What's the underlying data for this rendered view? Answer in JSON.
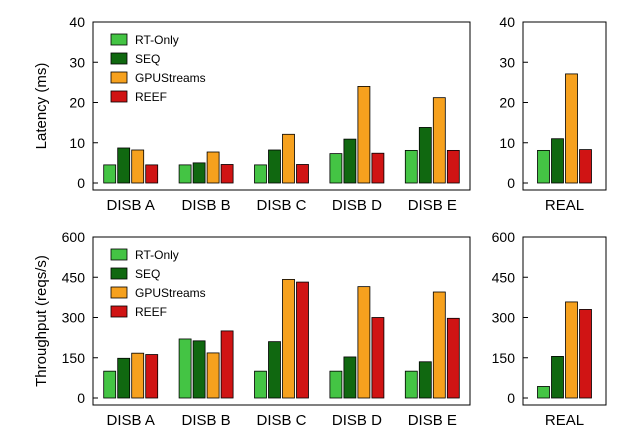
{
  "colors": {
    "RT-Only": "#44c444",
    "SEQ": "#106810",
    "GPUStreams": "#f6a11e",
    "REEF": "#d01414"
  },
  "chart_data": [
    {
      "type": "bar",
      "ylabel": "Latency (ms)",
      "ylim": [
        0,
        40
      ],
      "yticks": [
        0,
        10,
        20,
        30,
        40
      ],
      "legend_position": "top-left",
      "categories": [
        "DISB A",
        "DISB B",
        "DISB C",
        "DISB D",
        "DISB E"
      ],
      "series": [
        {
          "name": "RT-Only",
          "values": [
            4.5,
            4.5,
            4.5,
            7.3,
            8.1
          ]
        },
        {
          "name": "SEQ",
          "values": [
            8.7,
            5.0,
            8.2,
            10.9,
            13.8
          ]
        },
        {
          "name": "GPUStreams",
          "values": [
            8.2,
            7.7,
            12.1,
            24.0,
            21.2
          ]
        },
        {
          "name": "REEF",
          "values": [
            4.5,
            4.6,
            4.6,
            7.4,
            8.1
          ]
        }
      ]
    },
    {
      "type": "bar",
      "ylabel": "",
      "ylim": [
        0,
        40
      ],
      "yticks": [
        0,
        10,
        20,
        30,
        40
      ],
      "categories": [
        "REAL"
      ],
      "series": [
        {
          "name": "RT-Only",
          "values": [
            8.1
          ]
        },
        {
          "name": "SEQ",
          "values": [
            11.0
          ]
        },
        {
          "name": "GPUStreams",
          "values": [
            27.1
          ]
        },
        {
          "name": "REEF",
          "values": [
            8.3
          ]
        }
      ]
    },
    {
      "type": "bar",
      "ylabel": "Throughput (reqs/s)",
      "ylim": [
        0,
        600
      ],
      "yticks": [
        0,
        150,
        300,
        450,
        600
      ],
      "legend_position": "top-left",
      "categories": [
        "DISB A",
        "DISB B",
        "DISB C",
        "DISB D",
        "DISB E"
      ],
      "series": [
        {
          "name": "RT-Only",
          "values": [
            100,
            220,
            100,
            100,
            100
          ]
        },
        {
          "name": "SEQ",
          "values": [
            148,
            213,
            210,
            153,
            135
          ]
        },
        {
          "name": "GPUStreams",
          "values": [
            167,
            168,
            442,
            415,
            395
          ]
        },
        {
          "name": "REEF",
          "values": [
            162,
            250,
            432,
            300,
            297
          ]
        }
      ]
    },
    {
      "type": "bar",
      "ylabel": "",
      "ylim": [
        0,
        600
      ],
      "yticks": [
        0,
        150,
        300,
        450,
        600
      ],
      "categories": [
        "REAL"
      ],
      "series": [
        {
          "name": "RT-Only",
          "values": [
            43
          ]
        },
        {
          "name": "SEQ",
          "values": [
            155
          ]
        },
        {
          "name": "GPUStreams",
          "values": [
            358
          ]
        },
        {
          "name": "REEF",
          "values": [
            330
          ]
        }
      ]
    }
  ]
}
